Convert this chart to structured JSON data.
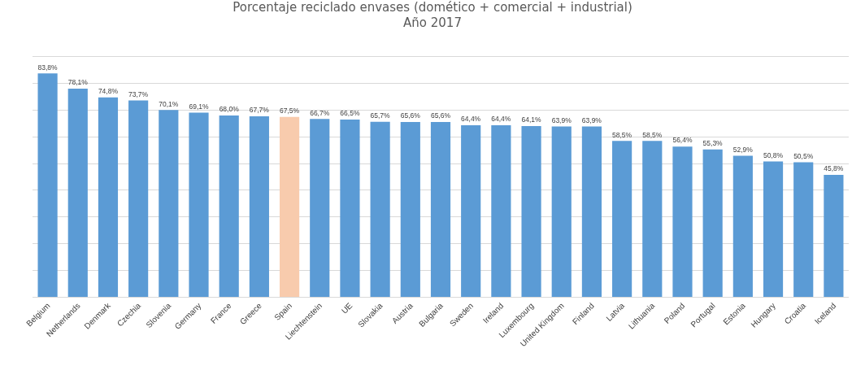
{
  "chart_data": {
    "type": "bar",
    "title": "Porcentaje reciclado envases (domético + comercial + industrial)\nAño 2017",
    "categories": [
      "Belgium",
      "Netherlands",
      "Denmark",
      "Czechia",
      "Slovenia",
      "Germany",
      "France",
      "Greece",
      "Spain",
      "Liechtenstein",
      "UE",
      "Slovakia",
      "Austria",
      "Bulgaria",
      "Sweden",
      "Ireland",
      "Luxembourg",
      "United Kingdom",
      "Finland",
      "Latvia",
      "Lithuania",
      "Poland",
      "Portugal",
      "Estonia",
      "Hungary",
      "Croatia",
      "Iceland"
    ],
    "values": [
      83.8,
      78.1,
      74.8,
      73.7,
      70.1,
      69.1,
      68.0,
      67.7,
      67.5,
      66.7,
      66.5,
      65.7,
      65.6,
      65.6,
      64.4,
      64.4,
      64.1,
      63.9,
      63.9,
      58.5,
      58.5,
      56.4,
      55.3,
      52.9,
      50.8,
      50.5,
      45.8
    ],
    "value_labels": [
      "83,8%",
      "78,1%",
      "74,8%",
      "73,7%",
      "70,1%",
      "69,1%",
      "68,0%",
      "67,7%",
      "67,5%",
      "66,7%",
      "66,5%",
      "65,7%",
      "65,6%",
      "65,6%",
      "64,4%",
      "64,4%",
      "64,1%",
      "63,9%",
      "63,9%",
      "58,5%",
      "58,5%",
      "56,4%",
      "55,3%",
      "52,9%",
      "50,8%",
      "50,5%",
      "45,8%"
    ],
    "colors": [
      "#5b9bd5",
      "#5b9bd5",
      "#5b9bd5",
      "#5b9bd5",
      "#5b9bd5",
      "#5b9bd5",
      "#5b9bd5",
      "#5b9bd5",
      "#f8cbad",
      "#5b9bd5",
      "#5b9bd5",
      "#5b9bd5",
      "#5b9bd5",
      "#5b9bd5",
      "#5b9bd5",
      "#5b9bd5",
      "#5b9bd5",
      "#5b9bd5",
      "#5b9bd5",
      "#5b9bd5",
      "#5b9bd5",
      "#5b9bd5",
      "#5b9bd5",
      "#5b9bd5",
      "#5b9bd5",
      "#5b9bd5",
      "#5b9bd5"
    ],
    "ylim": [
      0,
      90
    ],
    "yticks": [
      {
        "value": 0,
        "label": null
      },
      {
        "value": 10,
        "label": null
      },
      {
        "value": 20,
        "label": null
      },
      {
        "value": 30,
        "label": null
      },
      {
        "value": 40,
        "label": null
      },
      {
        "value": 50,
        "label": null
      },
      {
        "value": 60,
        "label": null
      },
      {
        "value": 70,
        "label": null
      },
      {
        "value": 80,
        "label": null
      },
      {
        "value": 90,
        "label": null
      }
    ],
    "grid": "y",
    "tick_labels": "x",
    "legend": false
  }
}
